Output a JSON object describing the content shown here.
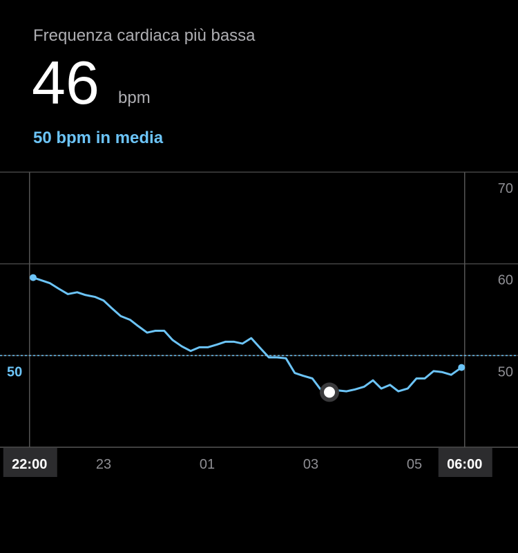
{
  "header": {
    "title": "Frequenza cardiaca più bassa",
    "value": 46,
    "unit": "bpm",
    "average_text": "50 bpm in media"
  },
  "chart_data": {
    "type": "line",
    "color": "#6cc4f7",
    "average": 50,
    "x": [
      21.64,
      21.8,
      21.96,
      22.13,
      22.31,
      22.49,
      22.65,
      22.83,
      23.0,
      23.17,
      23.33,
      23.51,
      23.67,
      23.84,
      24.0,
      24.17,
      24.33,
      24.51,
      24.68,
      24.85,
      25.01,
      25.19,
      25.35,
      25.52,
      25.68,
      25.85,
      26.01,
      26.19,
      26.35,
      26.52,
      26.69,
      26.85,
      27.03,
      27.19,
      27.36,
      27.52,
      27.69,
      27.85,
      28.03,
      28.2,
      28.36,
      28.53,
      28.69,
      28.87,
      29.04,
      29.2,
      29.37,
      29.53,
      29.71,
      29.91
    ],
    "values": [
      58.5,
      58.2,
      57.9,
      57.3,
      56.7,
      56.9,
      56.6,
      56.4,
      56.0,
      55.1,
      54.3,
      53.9,
      53.2,
      52.5,
      52.7,
      52.7,
      51.7,
      51.0,
      50.5,
      50.9,
      50.9,
      51.2,
      51.5,
      51.5,
      51.3,
      51.9,
      50.9,
      49.8,
      49.8,
      49.7,
      48.1,
      47.8,
      47.5,
      46.3,
      46.0,
      46.2,
      46.1,
      46.3,
      46.6,
      47.3,
      46.4,
      46.8,
      46.1,
      46.4,
      47.5,
      47.5,
      48.3,
      48.2,
      47.9,
      48.7
    ],
    "xlim": [
      21,
      31
    ],
    "xticks": [
      {
        "value": 21.57,
        "label": "22:00"
      },
      {
        "value": 23,
        "label": "23"
      },
      {
        "value": 25,
        "label": "01"
      },
      {
        "value": 27,
        "label": "03"
      },
      {
        "value": 29,
        "label": "05"
      },
      {
        "value": 29.97,
        "label": "06:00"
      }
    ],
    "ylim": [
      40,
      70
    ],
    "yticks": [
      50,
      60,
      70
    ],
    "grid": true
  }
}
